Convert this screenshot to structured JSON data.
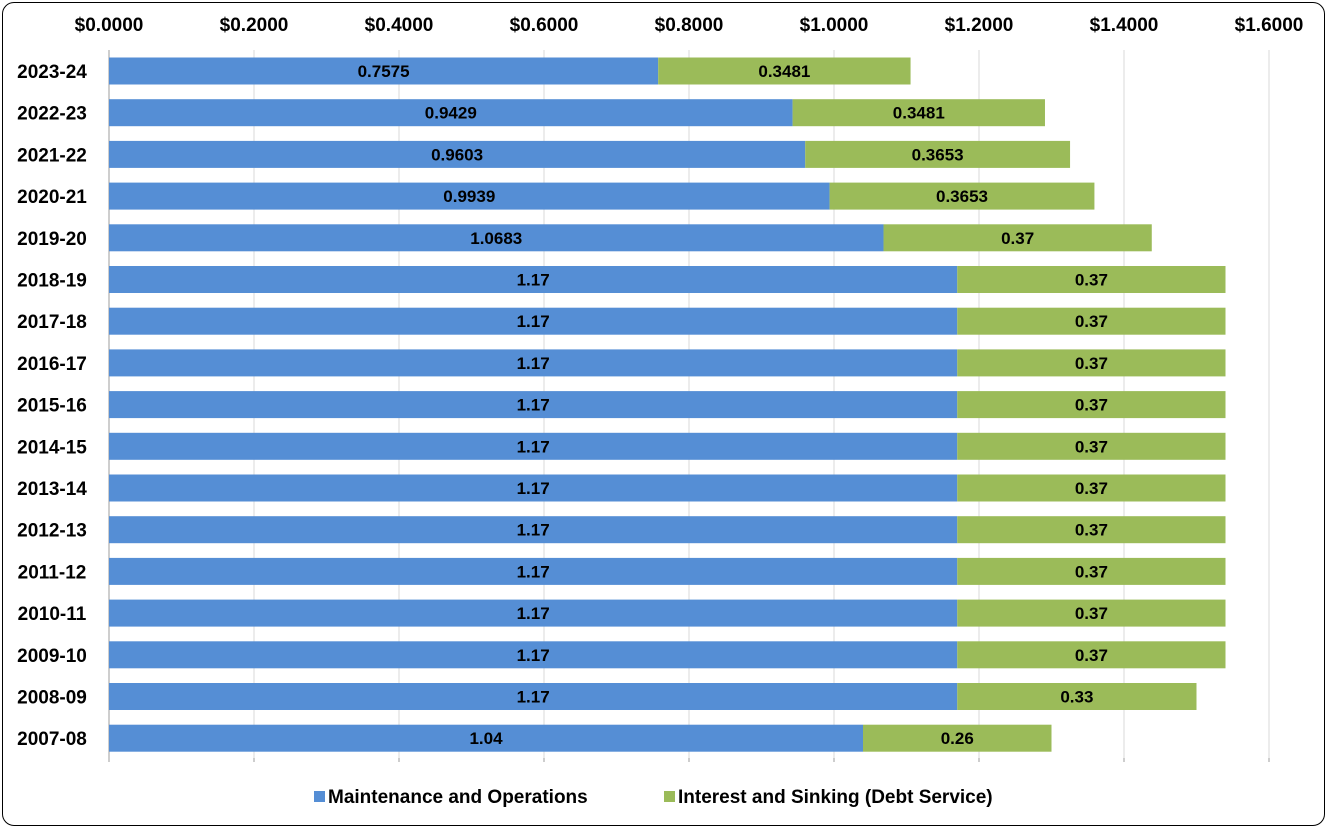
{
  "chart_data": {
    "type": "bar",
    "orientation": "horizontal",
    "stacked": true,
    "categories": [
      "2023-24",
      "2022-23",
      "2021-22",
      "2020-21",
      "2019-20",
      "2018-19",
      "2017-18",
      "2016-17",
      "2015-16",
      "2014-15",
      "2013-14",
      "2012-13",
      "2011-12",
      "2010-11",
      "2009-10",
      "2008-09",
      "2007-08"
    ],
    "series": [
      {
        "name": "Maintenance and Operations",
        "color": "#558ed5",
        "values": [
          0.7575,
          0.9429,
          0.9603,
          0.9939,
          1.0683,
          1.17,
          1.17,
          1.17,
          1.17,
          1.17,
          1.17,
          1.17,
          1.17,
          1.17,
          1.17,
          1.17,
          1.04
        ],
        "labels": [
          "0.7575",
          "0.9429",
          "0.9603",
          "0.9939",
          "1.0683",
          "1.17",
          "1.17",
          "1.17",
          "1.17",
          "1.17",
          "1.17",
          "1.17",
          "1.17",
          "1.17",
          "1.17",
          "1.17",
          "1.04"
        ]
      },
      {
        "name": "Interest and Sinking (Debt Service)",
        "color": "#9bbb59",
        "values": [
          0.3481,
          0.3481,
          0.3653,
          0.3653,
          0.37,
          0.37,
          0.37,
          0.37,
          0.37,
          0.37,
          0.37,
          0.37,
          0.37,
          0.37,
          0.37,
          0.33,
          0.26
        ],
        "labels": [
          "0.3481",
          "0.3481",
          "0.3653",
          "0.3653",
          "0.37",
          "0.37",
          "0.37",
          "0.37",
          "0.37",
          "0.37",
          "0.37",
          "0.37",
          "0.37",
          "0.37",
          "0.37",
          "0.33",
          "0.26"
        ]
      }
    ],
    "xlim": [
      0,
      1.6
    ],
    "x_ticks": [
      0,
      0.2,
      0.4,
      0.6,
      0.8,
      1.0,
      1.2,
      1.4,
      1.6
    ],
    "x_tick_labels": [
      "$0.0000",
      "$0.2000",
      "$0.4000",
      "$0.6000",
      "$0.8000",
      "$1.0000",
      "$1.2000",
      "$1.4000",
      "$1.6000"
    ],
    "x_axis_position": "top",
    "grid": true,
    "legend_position": "bottom",
    "title": "",
    "xlabel": "",
    "ylabel": ""
  }
}
